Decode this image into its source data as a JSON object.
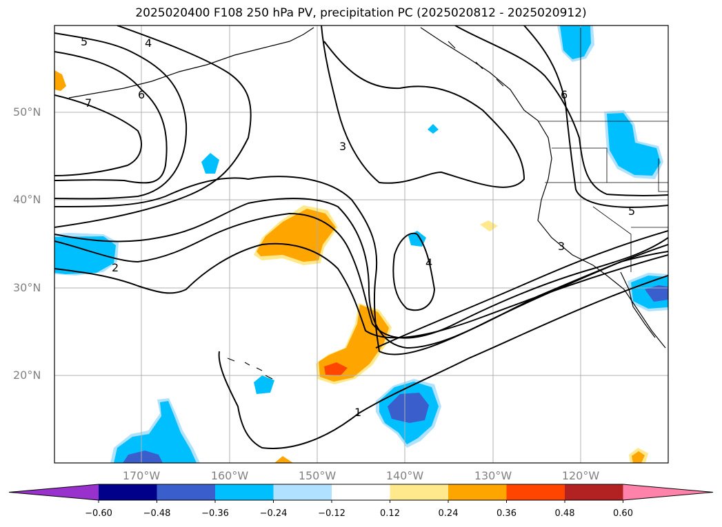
{
  "title": "2025020400 F108 250 hPa PV, precipitation PC (2025020812 - 2025020912)",
  "lat_labels": [
    "50°N",
    "40°N",
    "30°N",
    "20°N"
  ],
  "lon_labels": [
    "170°W",
    "160°W",
    "150°W",
    "140°W",
    "130°W",
    "120°W"
  ],
  "contour_labels": [
    "5",
    "4",
    "6",
    "7",
    "3",
    "6",
    "2",
    "4",
    "1",
    "3",
    "5"
  ],
  "colorbar": {
    "ticks": [
      "−0.60",
      "−0.48",
      "−0.36",
      "−0.24",
      "−0.12",
      "0.12",
      "0.24",
      "0.36",
      "0.48",
      "0.60"
    ],
    "colors": [
      "#9932cc",
      "#00008b",
      "#3a5fcd",
      "#00bfff",
      "#b0e2ff",
      "#ffffff",
      "#ffe98c",
      "#ffa500",
      "#ff4500",
      "#b22222",
      "#ff82ab"
    ]
  }
}
